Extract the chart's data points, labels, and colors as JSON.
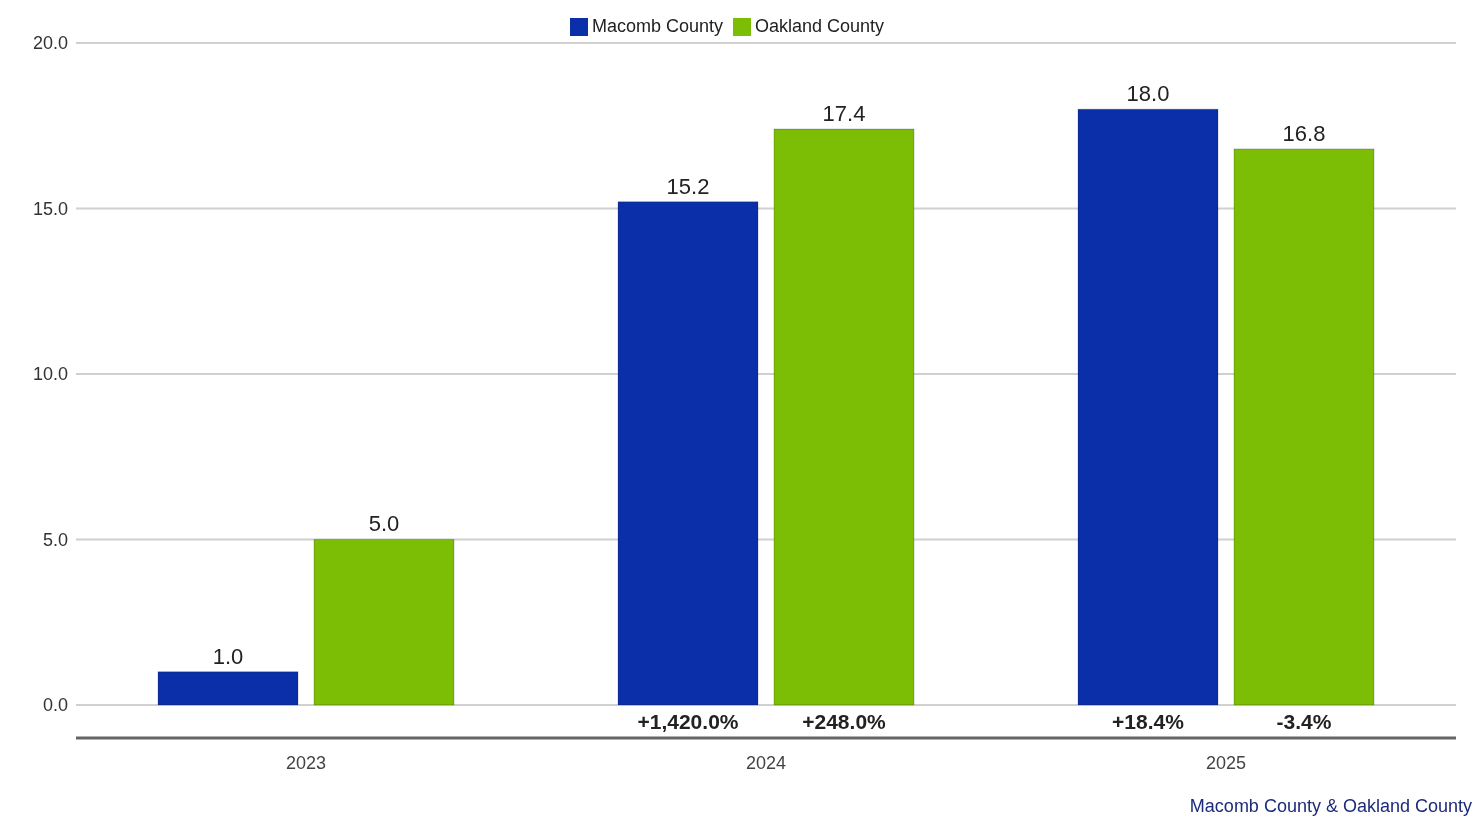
{
  "chart_data": {
    "type": "bar",
    "categories": [
      "2023",
      "2024",
      "2025"
    ],
    "series": [
      {
        "name": "Macomb County",
        "color": "#0b2fa8",
        "values": [
          1.0,
          15.2,
          18.0
        ],
        "value_labels": [
          "1.0",
          "15.2",
          "18.0"
        ]
      },
      {
        "name": "Oakland County",
        "color": "#7cbd06",
        "values": [
          5.0,
          17.4,
          16.8
        ],
        "value_labels": [
          "5.0",
          "17.4",
          "16.8"
        ]
      }
    ],
    "ylim": [
      -1,
      20
    ],
    "yticks": [
      {
        "value": 0,
        "label": "0.0"
      },
      {
        "value": 5,
        "label": "5.0"
      },
      {
        "value": 10,
        "label": "10.0"
      },
      {
        "value": 15,
        "label": "15.0"
      },
      {
        "value": 20,
        "label": "20.0"
      }
    ],
    "grid": "y",
    "legend": "top",
    "annotations": [
      "Macomb County & Oakland County",
      "+1,420.0%",
      "+248.0%",
      "+18.4%",
      "-3.4%"
    ]
  }
}
